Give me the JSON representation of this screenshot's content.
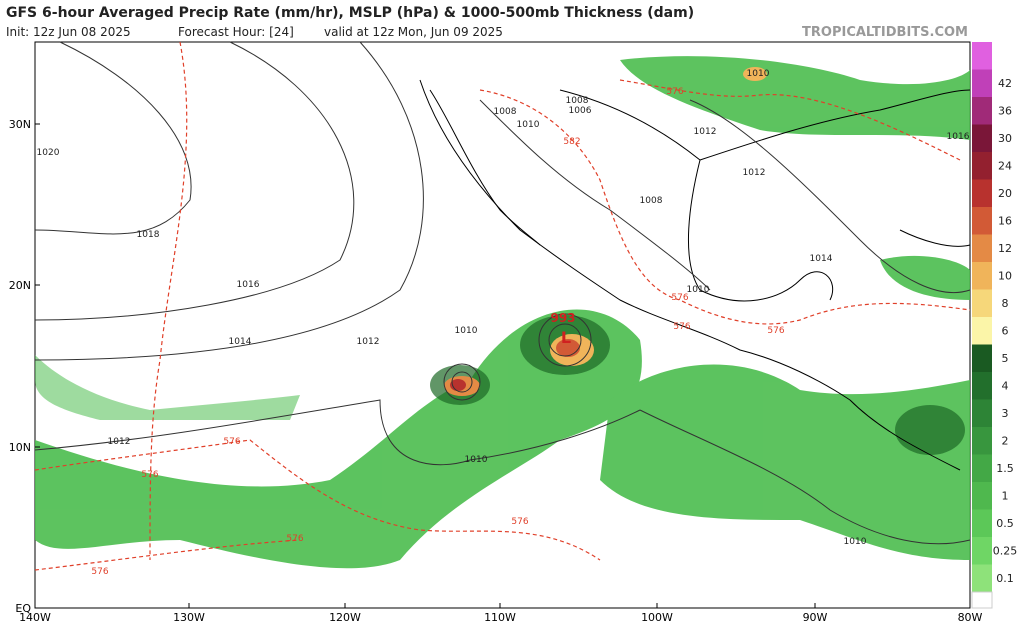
{
  "header": {
    "title": "GFS 6-hour Averaged Precip Rate (mm/hr), MSLP (hPa) & 1000-500mb Thickness (dam)",
    "init": "Init: 12z Jun 08 2025",
    "forecast_hour": "Forecast Hour: [24]",
    "valid": "valid at 12z Mon, Jun 09 2025",
    "site": "TROPICALTIDBITS.COM"
  },
  "axes": {
    "lat_labels": [
      "30N",
      "20N",
      "10N",
      "EQ"
    ],
    "lon_labels": [
      "140W",
      "130W",
      "120W",
      "110W",
      "100W",
      "90W",
      "80W"
    ]
  },
  "colorbar": {
    "levels": [
      0.1,
      0.25,
      0.5,
      1,
      1.5,
      2,
      3,
      4,
      5,
      6,
      8,
      10,
      12,
      16,
      20,
      24,
      30,
      36,
      42
    ],
    "colors": [
      "#8ee27a",
      "#6fd665",
      "#5cc858",
      "#4fb84e",
      "#43a846",
      "#38963e",
      "#2d8436",
      "#226f2c",
      "#1a5a22",
      "#fbf5a8",
      "#f6d77a",
      "#f0b45a",
      "#e48a45",
      "#d25a36",
      "#b8322e",
      "#93202f",
      "#7a1638",
      "#a02a78",
      "#c040b8",
      "#e060e0"
    ]
  },
  "isobars": [
    1020,
    1018,
    1016,
    1014,
    1012,
    1012,
    1010,
    1010,
    1008,
    1010,
    1008,
    1006,
    1012,
    1012,
    1008,
    1014,
    1010,
    1016,
    1010,
    1010
  ],
  "thickness": [
    576,
    576,
    576,
    576,
    576,
    576,
    576,
    576,
    576,
    582
  ],
  "storm": {
    "pressure": 993,
    "symbol": "L"
  }
}
